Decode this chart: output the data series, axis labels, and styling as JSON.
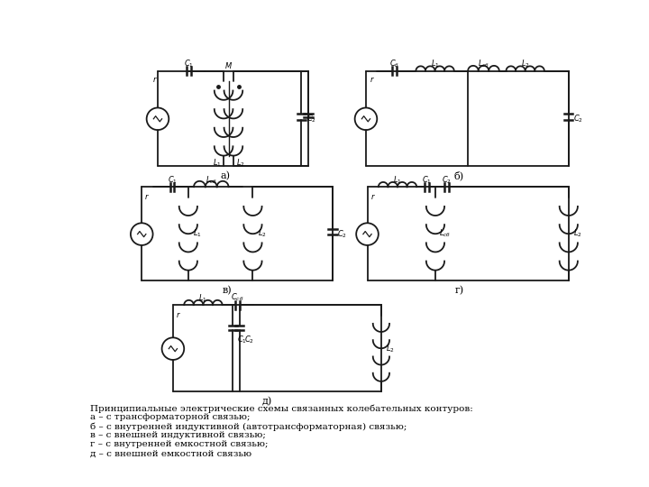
{
  "bg_color": "#ffffff",
  "line_color": "#1a1a1a",
  "text_color": "#000000",
  "fig_width": 7.2,
  "fig_height": 5.4,
  "caption_lines": [
    "Принципиальные электрические схемы связанных колебательных контуров:",
    "а – с трансформаторной связью;",
    "б – с внутренней индуктивной (автотрансформаторная) связью;",
    "в – с внешней индуктивной связью;",
    "г – с внутренней емкостной связью;",
    "д – с внешней емкостной связью"
  ]
}
